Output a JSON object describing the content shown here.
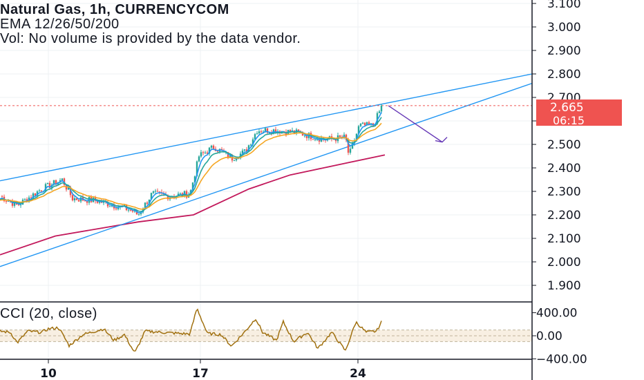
{
  "header": {
    "symbol": "Natural Gas, 1h, CURRENCYCOM",
    "ema_label": "EMA 12/26/50/200",
    "vol_label": "Vol: No volume is provided by the data vendor."
  },
  "price_tag": {
    "price": "2.665",
    "countdown": "06:15"
  },
  "cci": {
    "label": "CCI (20, close)",
    "ticks": [
      "400.00",
      "0.00",
      "−400.00"
    ]
  },
  "colors": {
    "up": "#26a69a",
    "down": "#ef5350",
    "ema12": "#2196f3",
    "ema26": "#26a69a",
    "ema50": "#f5a623",
    "ema200": "#c2185b",
    "channel": "#2196f3",
    "arrow": "#673ab7",
    "cci": "#a0700f",
    "tag": "#ef5350"
  },
  "chart_data": [
    {
      "type": "candlestick",
      "title": "Natural Gas, 1h, CURRENCYCOM",
      "ylim": [
        1.85,
        3.12
      ],
      "y_ticks": [
        "3.100",
        "3.000",
        "2.900",
        "2.800",
        "2.700",
        "2.600",
        "2.500",
        "2.400",
        "2.300",
        "2.200",
        "2.100",
        "2.000",
        "1.900"
      ],
      "x_ticks": [
        "10",
        "17",
        "24"
      ],
      "grid": true,
      "last_price": 2.665,
      "key_closes": [
        {
          "x": 0,
          "y": 2.28
        },
        {
          "x": 25,
          "y": 2.24
        },
        {
          "x": 60,
          "y": 2.31
        },
        {
          "x": 90,
          "y": 2.35
        },
        {
          "x": 105,
          "y": 2.27
        },
        {
          "x": 140,
          "y": 2.26
        },
        {
          "x": 190,
          "y": 2.22
        },
        {
          "x": 200,
          "y": 2.2
        },
        {
          "x": 220,
          "y": 2.29
        },
        {
          "x": 245,
          "y": 2.28
        },
        {
          "x": 275,
          "y": 2.29
        },
        {
          "x": 288,
          "y": 2.45
        },
        {
          "x": 310,
          "y": 2.49
        },
        {
          "x": 335,
          "y": 2.44
        },
        {
          "x": 355,
          "y": 2.47
        },
        {
          "x": 372,
          "y": 2.56
        },
        {
          "x": 400,
          "y": 2.56
        },
        {
          "x": 430,
          "y": 2.55
        },
        {
          "x": 470,
          "y": 2.52
        },
        {
          "x": 500,
          "y": 2.53
        },
        {
          "x": 505,
          "y": 2.45
        },
        {
          "x": 520,
          "y": 2.58
        },
        {
          "x": 540,
          "y": 2.58
        },
        {
          "x": 553,
          "y": 2.665
        }
      ],
      "ema200": [
        {
          "x": 0,
          "y": 2.03
        },
        {
          "x": 80,
          "y": 2.11
        },
        {
          "x": 200,
          "y": 2.17
        },
        {
          "x": 280,
          "y": 2.2
        },
        {
          "x": 360,
          "y": 2.31
        },
        {
          "x": 420,
          "y": 2.37
        },
        {
          "x": 500,
          "y": 2.42
        },
        {
          "x": 557,
          "y": 2.455
        }
      ],
      "channel_upper": [
        {
          "x": 0,
          "y": 2.345
        },
        {
          "x": 770,
          "y": 2.8
        }
      ],
      "channel_lower": [
        {
          "x": 0,
          "y": 1.98
        },
        {
          "x": 770,
          "y": 2.76
        }
      ],
      "arrow": [
        {
          "x": 562,
          "y": 2.665
        },
        {
          "x": 640,
          "y": 2.51
        }
      ]
    },
    {
      "type": "line",
      "title": "CCI (20, close)",
      "ylim": [
        -480,
        520
      ],
      "y_ticks": [
        400,
        0,
        -400
      ],
      "band": [
        -100,
        100
      ],
      "series": [
        {
          "values": [
            {
              "x": 0,
              "y": 80
            },
            {
              "x": 15,
              "y": 60
            },
            {
              "x": 25,
              "y": -120
            },
            {
              "x": 40,
              "y": 80
            },
            {
              "x": 60,
              "y": 60
            },
            {
              "x": 70,
              "y": 120
            },
            {
              "x": 85,
              "y": 140
            },
            {
              "x": 100,
              "y": -170
            },
            {
              "x": 120,
              "y": 20
            },
            {
              "x": 150,
              "y": 120
            },
            {
              "x": 165,
              "y": -80
            },
            {
              "x": 180,
              "y": 20
            },
            {
              "x": 195,
              "y": -300
            },
            {
              "x": 210,
              "y": 80
            },
            {
              "x": 235,
              "y": 60
            },
            {
              "x": 260,
              "y": 40
            },
            {
              "x": 275,
              "y": 30
            },
            {
              "x": 285,
              "y": 480
            },
            {
              "x": 300,
              "y": 40
            },
            {
              "x": 320,
              "y": 20
            },
            {
              "x": 335,
              "y": -180
            },
            {
              "x": 355,
              "y": 80
            },
            {
              "x": 370,
              "y": 300
            },
            {
              "x": 380,
              "y": 60
            },
            {
              "x": 400,
              "y": -80
            },
            {
              "x": 410,
              "y": 240
            },
            {
              "x": 425,
              "y": -100
            },
            {
              "x": 445,
              "y": 60
            },
            {
              "x": 460,
              "y": -220
            },
            {
              "x": 480,
              "y": 60
            },
            {
              "x": 500,
              "y": -260
            },
            {
              "x": 515,
              "y": 240
            },
            {
              "x": 530,
              "y": 60
            },
            {
              "x": 545,
              "y": 80
            },
            {
              "x": 553,
              "y": 260
            }
          ]
        }
      ]
    }
  ]
}
